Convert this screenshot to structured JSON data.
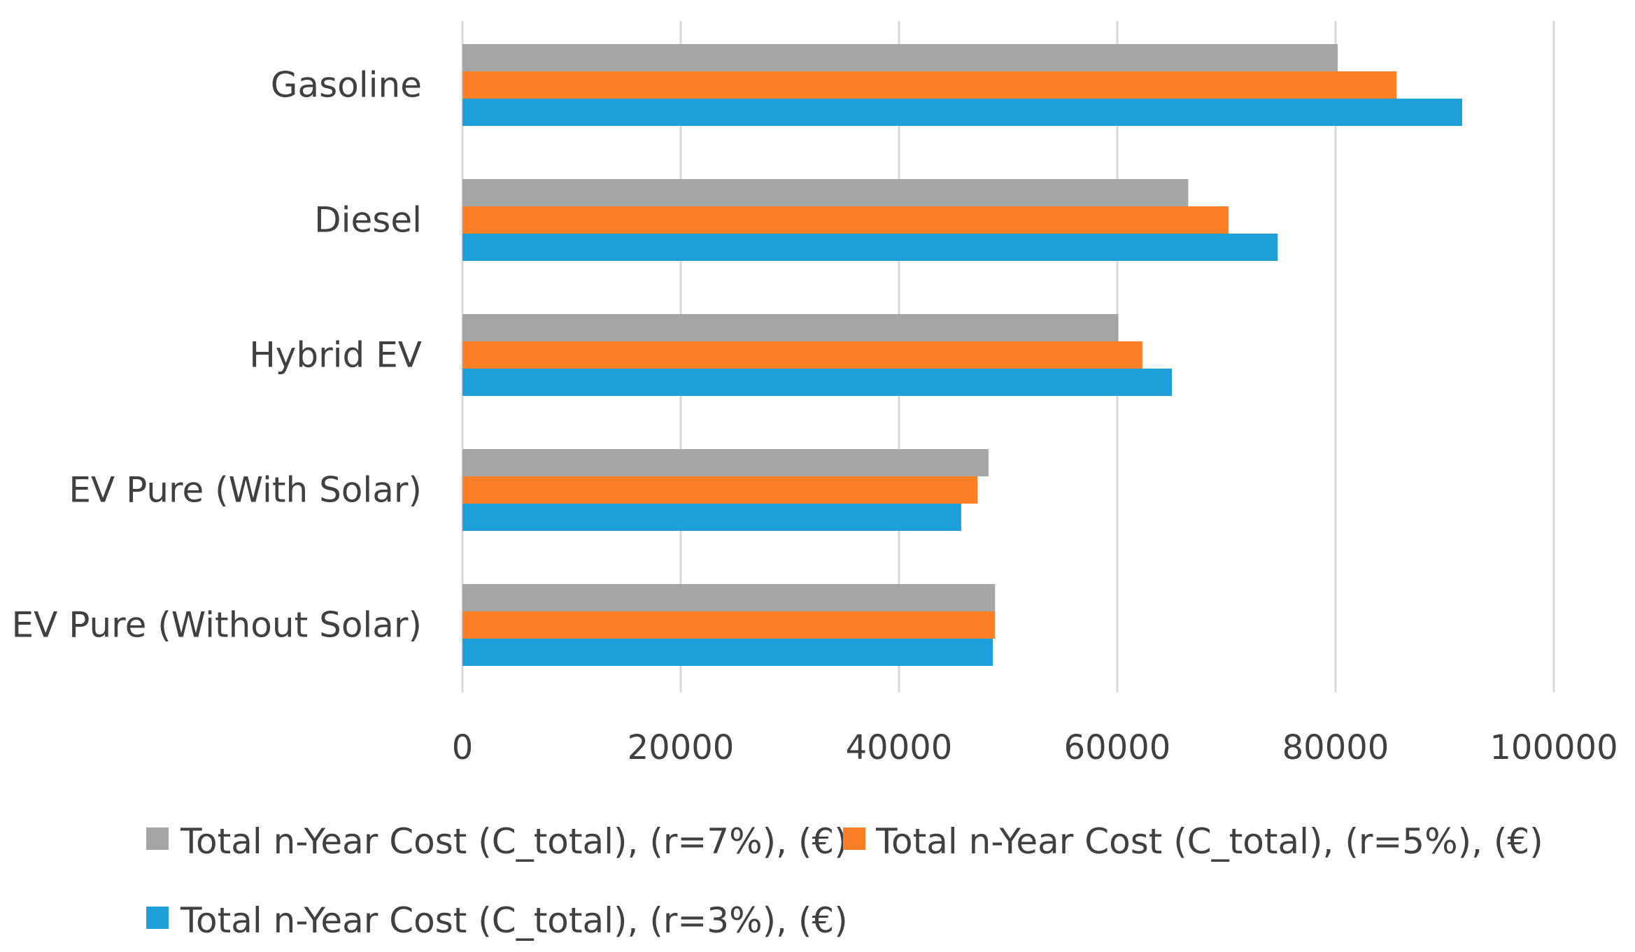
{
  "chart_data": {
    "type": "bar",
    "orientation": "horizontal",
    "title": "",
    "xlabel": "",
    "ylabel": "",
    "categories": [
      "Gasoline",
      "Diesel",
      "Hybrid EV",
      "EV Pure (With Solar)",
      "EV Pure (Without Solar)"
    ],
    "series": [
      {
        "name": "Total n-Year Cost (C_total), (r=7%), (€)",
        "color": "#a5a5a5",
        "values": [
          80200,
          66500,
          60100,
          48200,
          48800
        ]
      },
      {
        "name": "Total n-Year Cost (C_total), (r=5%), (€)",
        "color": "#ff7f27",
        "values": [
          85600,
          70200,
          62300,
          47200,
          48800
        ]
      },
      {
        "name": "Total n-Year Cost (C_total), (r=3%), (€)",
        "color": "#1f9fd9",
        "values": [
          91600,
          74700,
          65000,
          45700,
          48600
        ]
      }
    ],
    "xlim": [
      0,
      100000
    ],
    "xticks": [
      "0",
      "20000",
      "40000",
      "60000",
      "80000",
      "100000"
    ],
    "grid": "vertical",
    "legend": "bottom"
  }
}
